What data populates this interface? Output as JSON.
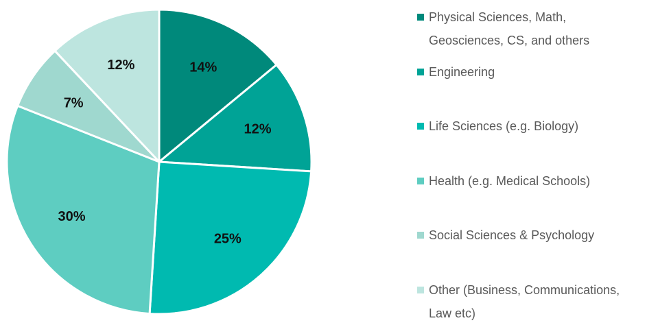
{
  "chart_data": {
    "type": "pie",
    "categories": [
      "Physical Sciences, Math, Geosciences, CS, and others",
      "Engineering",
      "Life Sciences (e.g. Biology)",
      "Health (e.g. Medical Schools)",
      "Social Sciences & Psychology",
      "Other (Business, Communications, Law etc)"
    ],
    "values": [
      14,
      12,
      25,
      30,
      7,
      12
    ],
    "value_labels": [
      "14%",
      "12%",
      "25%",
      "30%",
      "7%",
      "12%"
    ],
    "colors": [
      "#00897b",
      "#00a396",
      "#00bab0",
      "#5ecdc1",
      "#9fd8cf",
      "#bde5df"
    ],
    "legend": "right"
  }
}
